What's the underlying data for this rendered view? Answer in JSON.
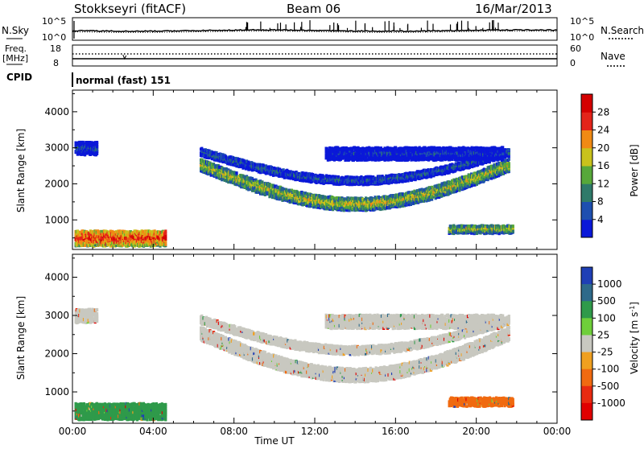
{
  "header": {
    "station": "Stokkseyri (fitACF)",
    "beam": "Beam 06",
    "date": "16/Mar/2013"
  },
  "top_panel": {
    "left_label": "N.Sky",
    "right_label": "N.Search",
    "left_ticks": [
      "10^5",
      "10^0"
    ],
    "right_ticks": [
      "10^5",
      "10^0"
    ]
  },
  "freq_panel": {
    "left_label_1": "Freq.",
    "left_label_2": "[MHz]",
    "right_label": "Nave",
    "left_ticks": [
      "18",
      "8"
    ],
    "right_ticks": [
      "60",
      "0"
    ]
  },
  "cpid": {
    "label": "CPID",
    "value": "normal (fast) 151"
  },
  "chart_data": [
    {
      "type": "heatmap",
      "quantity": "Power",
      "ylabel": "Slant Range [km]",
      "ylim": [
        180,
        4600
      ],
      "yticks": [
        1000,
        2000,
        3000,
        4000
      ],
      "xlim_hours": [
        0,
        24
      ],
      "xticks": [
        "00:00",
        "04:00",
        "08:00",
        "12:00",
        "16:00",
        "20:00",
        "00:00"
      ],
      "colorbar_label": "Power [dB]",
      "colorbar_ticks": [
        "4",
        "8",
        "12",
        "16",
        "20",
        "24",
        "28"
      ],
      "colorbar_range": [
        0,
        32
      ],
      "colorbar_colors": [
        "#0a18d8",
        "#1e4fb0",
        "#2f7a6a",
        "#57a83a",
        "#c9c21c",
        "#f08a14",
        "#e3241a",
        "#d40000"
      ],
      "echo_regions": [
        {
          "t0": 6.3,
          "t1": 21.6,
          "r_center": 1500,
          "r_width": 350,
          "arc": 2.6,
          "level": 0.55
        },
        {
          "t0": 6.3,
          "t1": 21.6,
          "r_center": 2150,
          "r_width": 220,
          "arc": 1.9,
          "level": 0.25
        },
        {
          "t0": 0.1,
          "t1": 4.6,
          "r_center": 550,
          "r_width": 420,
          "arc": 0.0,
          "level": 0.85
        },
        {
          "t0": 0.1,
          "t1": 1.2,
          "r_center": 3050,
          "r_width": 350,
          "arc": 0.0,
          "level": 0.2
        },
        {
          "t0": 18.6,
          "t1": 21.8,
          "r_center": 800,
          "r_width": 220,
          "arc": 0.0,
          "level": 0.55
        },
        {
          "t0": 12.5,
          "t1": 21.3,
          "r_center": 2900,
          "r_width": 350,
          "arc": 0.0,
          "level": 0.12
        }
      ]
    },
    {
      "type": "heatmap",
      "quantity": "Velocity",
      "ylabel": "Slant Range [km]",
      "ylim": [
        180,
        4600
      ],
      "yticks": [
        1000,
        2000,
        3000,
        4000
      ],
      "xlim_hours": [
        0,
        24
      ],
      "xticks": [
        "00:00",
        "04:00",
        "08:00",
        "12:00",
        "16:00",
        "20:00",
        "00:00"
      ],
      "xlabel": "Time UT",
      "colorbar_label": "Velocity [m s^-1]",
      "colorbar_ticks": [
        "1000",
        "500",
        "100",
        "25",
        "-25",
        "-100",
        "-500",
        "-1000"
      ],
      "colorbar_colors": [
        "#1f3fb5",
        "#2e6a8a",
        "#2f9a4a",
        "#6fcf3a",
        "#c8c8c0",
        "#f0a020",
        "#f06a10",
        "#e82a10",
        "#e00000"
      ],
      "echo_regions": [
        {
          "t0": 6.3,
          "t1": 21.6,
          "r_center": 1500,
          "r_width": 350,
          "arc": 2.6,
          "color": "#c8c8c0"
        },
        {
          "t0": 6.3,
          "t1": 21.6,
          "r_center": 2150,
          "r_width": 220,
          "arc": 1.9,
          "color": "#c8c8c0"
        },
        {
          "t0": 0.1,
          "t1": 4.6,
          "r_center": 550,
          "r_width": 420,
          "arc": 0.0,
          "color": "#2f9a4a"
        },
        {
          "t0": 0.1,
          "t1": 1.2,
          "r_center": 3050,
          "r_width": 350,
          "arc": 0.0,
          "color": "#c8c8c0"
        },
        {
          "t0": 18.6,
          "t1": 21.8,
          "r_center": 800,
          "r_width": 220,
          "arc": 0.0,
          "color": "#f06a10"
        },
        {
          "t0": 12.5,
          "t1": 21.3,
          "r_center": 2900,
          "r_width": 350,
          "arc": 0.0,
          "color": "#c8c8c0"
        }
      ]
    }
  ]
}
